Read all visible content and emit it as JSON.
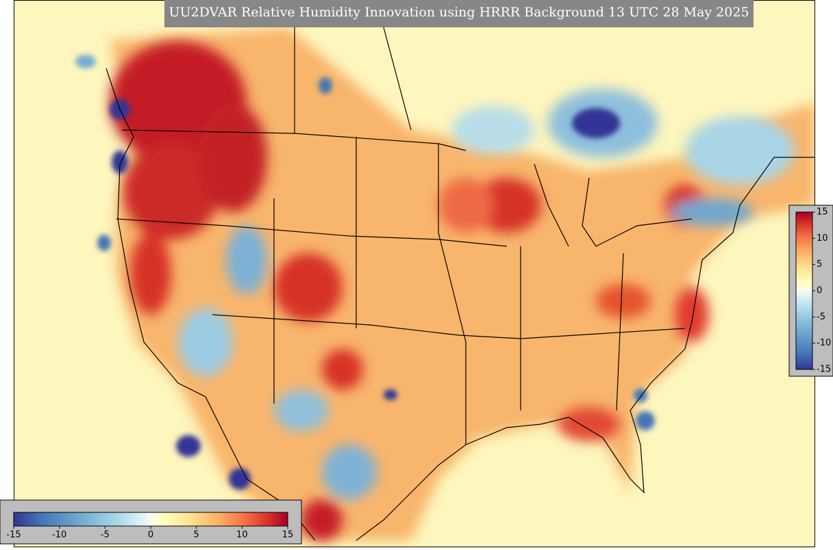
{
  "title": "UU2DVAR Relative Humidity Innovation using HRRR Background 13 UTC 28 May 2025",
  "colorbar_right": {
    "lim": [
      -15,
      15
    ],
    "ticks": [
      -15,
      -10,
      -5,
      0,
      5,
      10,
      15
    ]
  },
  "colorbar_bottom": {
    "lim": [
      -15,
      15
    ],
    "ticks": [
      -15,
      -10,
      -5,
      0,
      5,
      10,
      15
    ]
  }
}
